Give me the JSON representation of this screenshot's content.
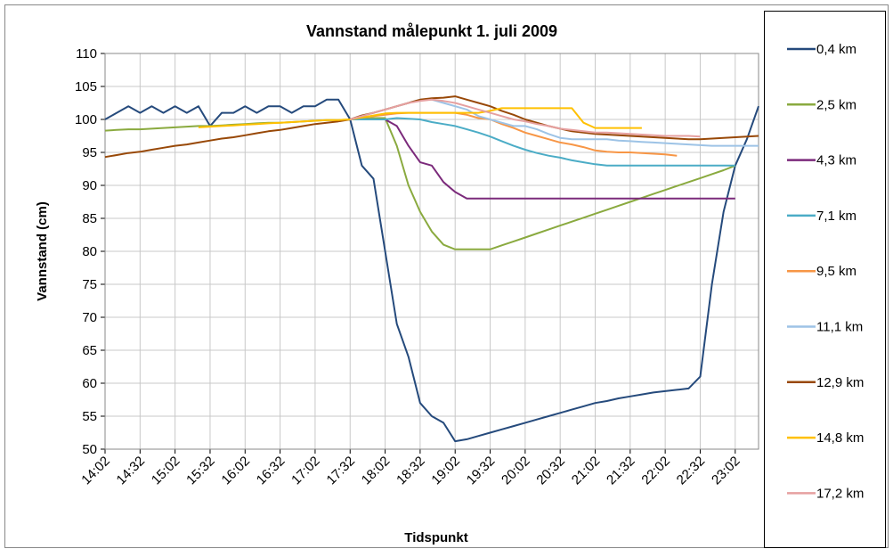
{
  "chart_data": {
    "type": "line",
    "title": "Vannstand målepunkt 1. juli 2009",
    "xlabel": "Tidspunkt",
    "ylabel": "Vannstand (cm)",
    "x": [
      "14:02",
      "14:12",
      "14:22",
      "14:32",
      "14:42",
      "14:52",
      "15:02",
      "15:12",
      "15:22",
      "15:32",
      "15:42",
      "15:52",
      "16:02",
      "16:12",
      "16:22",
      "16:32",
      "16:42",
      "16:52",
      "17:02",
      "17:12",
      "17:22",
      "17:32",
      "17:42",
      "17:52",
      "18:02",
      "18:12",
      "18:22",
      "18:32",
      "18:42",
      "18:52",
      "19:02",
      "19:12",
      "19:22",
      "19:32",
      "19:42",
      "19:52",
      "20:02",
      "20:12",
      "20:22",
      "20:32",
      "20:42",
      "20:52",
      "21:02",
      "21:12",
      "21:22",
      "21:32",
      "21:42",
      "21:52",
      "22:02",
      "22:12",
      "22:22",
      "22:32",
      "22:42",
      "22:52",
      "23:02",
      "23:12",
      "23:22"
    ],
    "xlim": [
      "14:02",
      "23:22"
    ],
    "xticks": [
      "14:02",
      "14:32",
      "15:02",
      "15:32",
      "16:02",
      "16:32",
      "17:02",
      "17:32",
      "18:02",
      "18:32",
      "19:02",
      "19:32",
      "20:02",
      "20:32",
      "21:02",
      "21:32",
      "22:02",
      "22:32",
      "23:02"
    ],
    "ylim": [
      50,
      110
    ],
    "yticks": [
      50,
      55,
      60,
      65,
      70,
      75,
      80,
      85,
      90,
      95,
      100,
      105,
      110
    ],
    "grid": true,
    "legend": "right",
    "series": [
      {
        "name": "0,4 km",
        "color": "#254a7c",
        "values": [
          100,
          101,
          102,
          101,
          102,
          101,
          102,
          101,
          102,
          99,
          101,
          101,
          102,
          101,
          102,
          102,
          101,
          102,
          102,
          103,
          103,
          100,
          93,
          91,
          80,
          69,
          64,
          57,
          55,
          54,
          51.2,
          51.5,
          52,
          52.5,
          53,
          53.5,
          54,
          54.5,
          55,
          55.5,
          56,
          56.5,
          57,
          57.3,
          57.7,
          58,
          58.3,
          58.6,
          58.8,
          59,
          59.2,
          61,
          75,
          86,
          93,
          97,
          102
        ]
      },
      {
        "name": "2,5 km",
        "color": "#8aaa3f",
        "values": [
          98.3,
          98.4,
          98.5,
          98.5,
          98.6,
          98.7,
          98.8,
          98.9,
          99,
          99,
          99.1,
          99.2,
          99.3,
          99.4,
          99.5,
          99.5,
          99.6,
          99.7,
          99.8,
          99.9,
          99.9,
          100,
          100.1,
          100.2,
          100.2,
          96,
          90,
          86,
          83,
          81,
          80.3,
          80.3,
          80.3,
          80.3,
          80.9,
          81.5,
          82.1,
          82.7,
          83.3,
          83.9,
          84.5,
          85.1,
          85.7,
          86.3,
          86.9,
          87.5,
          88.1,
          88.7,
          89.3,
          89.9,
          90.5,
          91.1,
          91.7,
          92.3,
          93,
          null,
          null
        ]
      },
      {
        "name": "4,3 km",
        "color": "#7b2a7b",
        "values": [
          null,
          null,
          null,
          null,
          null,
          null,
          null,
          null,
          null,
          null,
          null,
          null,
          null,
          null,
          null,
          null,
          null,
          null,
          null,
          null,
          null,
          100,
          100,
          100,
          100,
          99,
          96,
          93.5,
          93,
          90.5,
          89,
          88,
          88,
          88,
          88,
          88,
          88,
          88,
          88,
          88,
          88,
          88,
          88,
          88,
          88,
          88,
          88,
          88,
          88,
          88,
          88,
          88,
          88,
          88,
          88,
          null,
          null
        ]
      },
      {
        "name": "7,1 km",
        "color": "#4bacc6",
        "values": [
          null,
          null,
          null,
          null,
          null,
          null,
          null,
          null,
          null,
          null,
          null,
          null,
          null,
          null,
          null,
          null,
          null,
          null,
          null,
          null,
          null,
          100,
          100,
          100,
          100,
          100.2,
          100.1,
          100,
          99.6,
          99.3,
          99,
          98.5,
          98,
          97.4,
          96.7,
          96,
          95.4,
          94.9,
          94.5,
          94.2,
          93.8,
          93.5,
          93.2,
          93,
          93,
          93,
          93,
          93,
          93,
          93,
          93,
          93,
          93,
          93,
          93,
          null,
          null
        ]
      },
      {
        "name": "9,5 km",
        "color": "#f79646",
        "values": [
          null,
          null,
          null,
          null,
          null,
          null,
          null,
          null,
          null,
          null,
          null,
          null,
          null,
          null,
          null,
          null,
          null,
          null,
          null,
          null,
          null,
          100,
          100.3,
          100.5,
          100.7,
          100.9,
          101,
          101,
          101,
          101,
          101,
          100.7,
          100.2,
          100,
          99.3,
          98.7,
          98,
          97.5,
          97,
          96.5,
          96.2,
          95.8,
          95.3,
          95.1,
          95,
          95,
          94.9,
          94.8,
          94.7,
          94.5,
          null,
          null,
          null,
          null,
          null,
          null,
          null
        ]
      },
      {
        "name": "11,1 km",
        "color": "#9dc3e6",
        "values": [
          null,
          null,
          null,
          null,
          null,
          null,
          null,
          null,
          null,
          null,
          null,
          null,
          null,
          null,
          null,
          null,
          null,
          null,
          null,
          null,
          null,
          100,
          100.5,
          101,
          101.5,
          102,
          102.5,
          103,
          103,
          102.5,
          102,
          101.5,
          100.5,
          100,
          99.5,
          99,
          99,
          98.5,
          97.8,
          97.2,
          97,
          97,
          97,
          97,
          96.8,
          96.7,
          96.6,
          96.5,
          96.4,
          96.3,
          96.2,
          96.1,
          96,
          96,
          96,
          96,
          96
        ]
      },
      {
        "name": "12,9 km",
        "color": "#984807",
        "values": [
          94.3,
          94.6,
          94.9,
          95.1,
          95.4,
          95.7,
          96,
          96.2,
          96.5,
          96.8,
          97.1,
          97.3,
          97.6,
          97.9,
          98.2,
          98.4,
          98.7,
          99,
          99.3,
          99.5,
          99.7,
          100,
          100.6,
          101,
          101.5,
          102,
          102.5,
          103,
          103.2,
          103.3,
          103.5,
          103,
          102.5,
          102,
          101.3,
          100.7,
          100,
          99.5,
          99,
          98.6,
          98.2,
          98,
          97.8,
          97.7,
          97.6,
          97.5,
          97.4,
          97.3,
          97.2,
          97.1,
          97,
          97,
          97.1,
          97.2,
          97.3,
          97.4,
          97.5
        ]
      },
      {
        "name": "14,8 km",
        "color": "#ffc000",
        "values": [
          null,
          null,
          null,
          null,
          null,
          null,
          null,
          null,
          98.8,
          98.9,
          99,
          99.1,
          99.2,
          99.3,
          99.4,
          99.5,
          99.6,
          99.7,
          99.8,
          99.9,
          99.9,
          100,
          100.3,
          100.6,
          100.9,
          101,
          101,
          101,
          101,
          101,
          101,
          101,
          101,
          101.3,
          101.7,
          101.7,
          101.7,
          101.7,
          101.7,
          101.7,
          101.7,
          99.5,
          98.7,
          98.7,
          98.7,
          98.7,
          98.7,
          null,
          null,
          null,
          null,
          null,
          null,
          null,
          null,
          null,
          null
        ]
      },
      {
        "name": "17,2 km",
        "color": "#e6a0a0",
        "values": [
          null,
          null,
          null,
          null,
          null,
          null,
          null,
          null,
          null,
          null,
          null,
          null,
          null,
          null,
          null,
          null,
          null,
          null,
          null,
          null,
          null,
          100,
          100.5,
          101,
          101.5,
          102,
          102.5,
          102.8,
          103,
          102.8,
          102.5,
          102,
          101.5,
          101,
          100.5,
          100,
          99.7,
          99.3,
          99,
          98.6,
          98.4,
          98.2,
          98,
          98,
          97.9,
          97.8,
          97.7,
          97.6,
          97.5,
          97.5,
          97.5,
          97.4,
          null,
          null,
          null,
          null,
          null
        ]
      }
    ]
  }
}
